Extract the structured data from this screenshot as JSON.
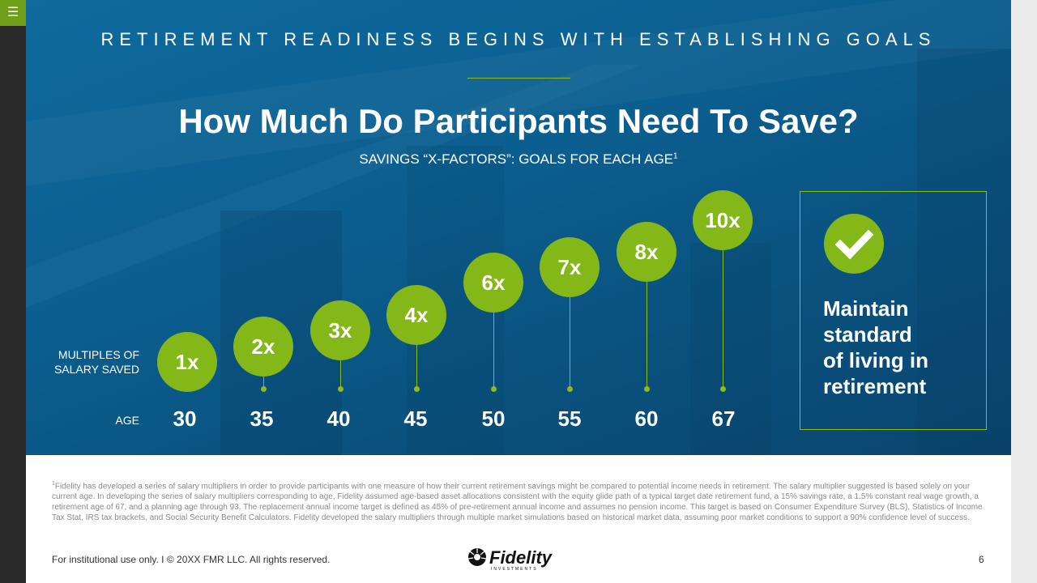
{
  "ui": {
    "menu_icon": "hamburger-icon"
  },
  "colors": {
    "hero": "#0b5f90",
    "accent": "#84b819",
    "menu": "#6f9f19"
  },
  "slide": {
    "kicker": "RETIREMENT READINESS BEGINS WITH ESTABLISHING GOALS",
    "title": "How Much Do Participants Need To Save?",
    "subtitle": "SAVINGS “X-FACTORS”: GOALS FOR EACH AGE",
    "subtitle_sup": "1",
    "multiples_label_line1": "MULTIPLES OF",
    "multiples_label_line2": "SALARY SAVED",
    "age_label": "AGE",
    "milestones": [
      {
        "multiple": "1x",
        "age": "30"
      },
      {
        "multiple": "2x",
        "age": "35"
      },
      {
        "multiple": "3x",
        "age": "40"
      },
      {
        "multiple": "4x",
        "age": "45"
      },
      {
        "multiple": "6x",
        "age": "50"
      },
      {
        "multiple": "7x",
        "age": "55"
      },
      {
        "multiple": "8x",
        "age": "60"
      },
      {
        "multiple": "10x",
        "age": "67"
      }
    ],
    "goal": {
      "icon": "checkmark-icon",
      "text_lines": [
        "Maintain",
        "standard",
        "of living in",
        "retirement"
      ]
    },
    "footnote_sup": "1",
    "footnote": "Fidelity has developed a series of salary multipliers in order to provide participants with one measure of how their current retirement savings might be compared to potential income needs in retirement. The salary multiplier suggested is based solely on your current age. In developing the series of salary multipliers corresponding to age, Fidelity assumed age-based asset allocations consistent with the equity glide path of a typical target date retirement fund, a 15% savings rate, a 1.5% constant real wage growth, a retirement age of 67, and a planning age through 93. The replacement annual income target is defined as 45% of pre-retirement annual income and assumes no pension income. This target is based on Consumer Expenditure Survey (BLS), Statistics of Income Tax Stat, IRS tax brackets, and Social Security Benefit Calculators. Fidelity developed the salary multipliers through multiple market simulations based on historical market data, assuming poor market conditions to support a 90% confidence level of success.",
    "footer_left": "For institutional use only.  I  © 20XX FMR LLC. All rights reserved.",
    "logo_text": "Fidelity",
    "logo_subtext": "INVESTMENTS",
    "page_number": "6"
  }
}
